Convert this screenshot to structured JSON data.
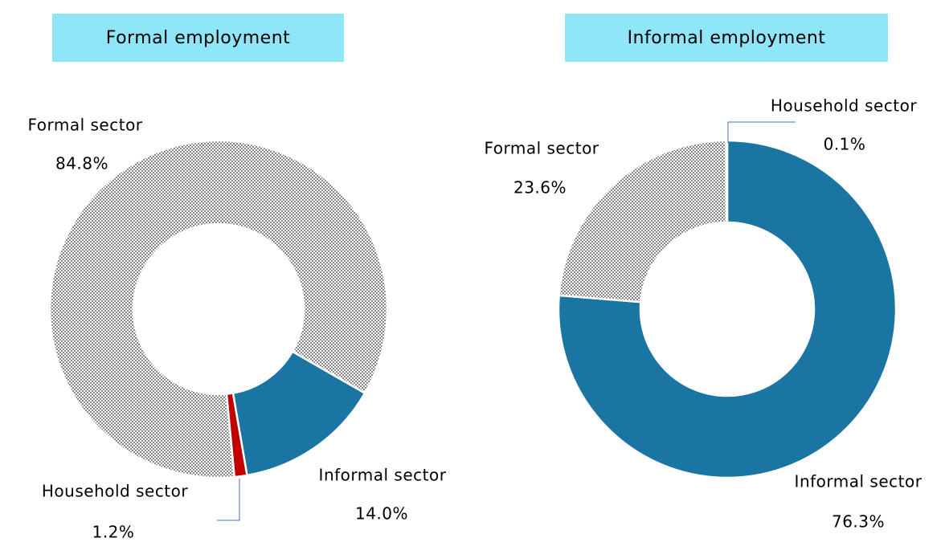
{
  "chart_data": [
    {
      "type": "pie",
      "title": "Formal employment",
      "categories": [
        "Formal sector",
        "Informal sector",
        "Household sector"
      ],
      "values": [
        84.8,
        14.0,
        1.2
      ],
      "value_labels": [
        "84.8%",
        "14.0%",
        "1.2%"
      ],
      "colors": [
        "#888888",
        "#1b75a3",
        "#c00000"
      ]
    },
    {
      "type": "pie",
      "title": "Informal employment",
      "categories": [
        "Informal sector",
        "Formal sector",
        "Household sector"
      ],
      "values": [
        76.3,
        23.6,
        0.1
      ],
      "value_labels": [
        "76.3%",
        "23.6%",
        "0.1%"
      ],
      "colors": [
        "#1b75a3",
        "#888888",
        "#c00000"
      ]
    }
  ]
}
